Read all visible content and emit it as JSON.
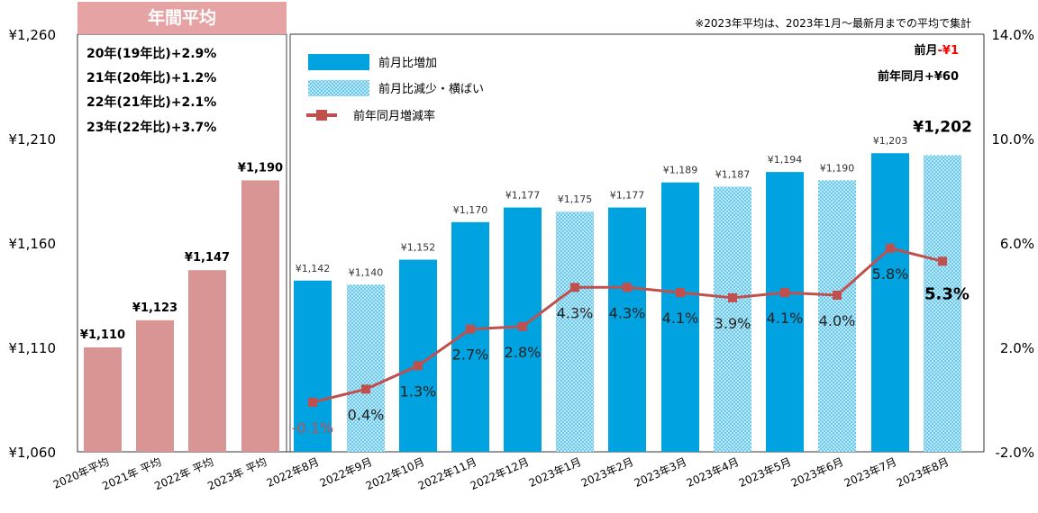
{
  "chart_data": {
    "type": "bar",
    "note": "※2023年平均は、2023年1月～最新月までの平均で集計",
    "annual_box": {
      "title": "年間平均",
      "lines": [
        "20年(19年比)+2.9%",
        "21年(20年比)+1.2%",
        "22年(21年比)+2.1%",
        "23年(22年比)+3.7%"
      ]
    },
    "summary": {
      "prev_month_label": "前月",
      "prev_month_value": "-¥1",
      "yoy": "前年同月+¥60"
    },
    "legend": {
      "increase": "前月比増加",
      "decrease": "前月比減少・横ばい",
      "rate": "前年同月増減率"
    },
    "categories": [
      "2020年平均",
      "2021年 平均",
      "2022年 平均",
      "2023年 平均",
      "2022年8月",
      "2022年9月",
      "2022年10月",
      "2022年11月",
      "2022年12月",
      "2023年1月",
      "2023年2月",
      "2023年3月",
      "2023年4月",
      "2023年5月",
      "2023年6月",
      "2023年7月",
      "2023年8月"
    ],
    "values": [
      1110,
      1123,
      1147,
      1190,
      1142,
      1140,
      1152,
      1170,
      1177,
      1175,
      1177,
      1189,
      1187,
      1194,
      1190,
      1203,
      1202
    ],
    "value_labels": [
      "¥1,110",
      "¥1,123",
      "¥1,147",
      "¥1,190",
      "¥1,142",
      "¥1,140",
      "¥1,152",
      "¥1,170",
      "¥1,177",
      "¥1,175",
      "¥1,177",
      "¥1,189",
      "¥1,187",
      "¥1,194",
      "¥1,190",
      "¥1,203",
      "¥1,202"
    ],
    "bar_kind": [
      "annual",
      "annual",
      "annual",
      "annual",
      "increase",
      "decrease",
      "increase",
      "increase",
      "increase",
      "decrease",
      "increase",
      "increase",
      "decrease",
      "increase",
      "decrease",
      "increase",
      "decrease"
    ],
    "rate_series": {
      "name": "前年同月増減率",
      "values": [
        -0.1,
        0.4,
        1.3,
        2.7,
        2.8,
        4.3,
        4.3,
        4.1,
        3.9,
        4.1,
        4.0,
        5.8,
        5.3
      ],
      "labels": [
        "-0.1%",
        "0.4%",
        "1.3%",
        "2.7%",
        "2.8%",
        "4.3%",
        "4.3%",
        "4.1%",
        "3.9%",
        "4.1%",
        "4.0%",
        "5.8%",
        "5.3%"
      ]
    },
    "y_left": {
      "min": 1060,
      "max": 1260,
      "ticks": [
        1060,
        1110,
        1160,
        1210,
        1260
      ],
      "tick_labels": [
        "¥1,060",
        "¥1,110",
        "¥1,160",
        "¥1,210",
        "¥1,260"
      ]
    },
    "y_right": {
      "min": -2.0,
      "max": 14.0,
      "ticks": [
        -2.0,
        2.0,
        6.0,
        10.0,
        14.0
      ],
      "tick_labels": [
        "-2.0%",
        "2.0%",
        "6.0%",
        "10.0%",
        "14.0%"
      ]
    },
    "colors": {
      "annual": "#d99594",
      "increase": "#00a3e0",
      "decrease": "#00a3e0",
      "line": "#c0504d",
      "title_box": "#e6a3a3",
      "negative_text": "#ff0000",
      "highlight_text": "#000000"
    }
  }
}
